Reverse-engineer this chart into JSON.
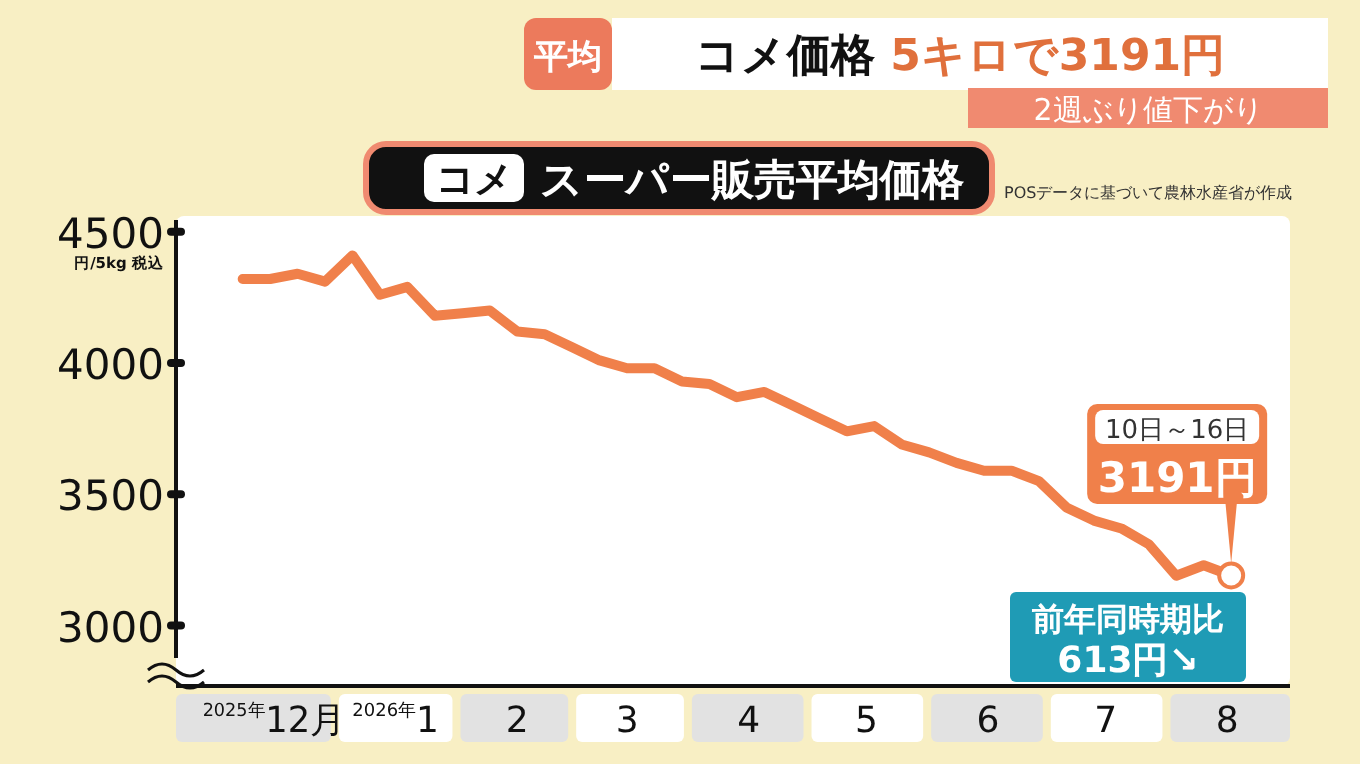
{
  "chart_data": {
    "type": "line",
    "title": "コメ スーパー販売平均価格",
    "ylabel": "円/5kg 税込",
    "annotations": [
      "平均",
      "コメ価格 5キロで3191円",
      "2週ぶり値下がり",
      "POSデータに基づいて農林水産省が作成",
      {
        "text": "10日～16日 3191円",
        "x": "2026-08-16",
        "y": 3191
      },
      "前年同時期比 613円↘"
    ],
    "x": [
      "2025-12-07",
      "2025-12-14",
      "2025-12-21",
      "2025-12-28",
      "2026-01-04",
      "2026-01-11",
      "2026-01-18",
      "2026-01-25",
      "2026-02-01",
      "2026-02-08",
      "2026-02-15",
      "2026-02-22",
      "2026-03-01",
      "2026-03-08",
      "2026-03-15",
      "2026-03-22",
      "2026-03-29",
      "2026-04-05",
      "2026-04-12",
      "2026-04-19",
      "2026-04-26",
      "2026-05-03",
      "2026-05-10",
      "2026-05-17",
      "2026-05-24",
      "2026-05-31",
      "2026-06-07",
      "2026-06-14",
      "2026-06-21",
      "2026-06-28",
      "2026-07-05",
      "2026-07-12",
      "2026-07-19",
      "2026-07-26",
      "2026-08-02",
      "2026-08-09",
      "2026-08-16"
    ],
    "series": [
      {
        "color": "#f0804a",
        "values": [
          4320,
          4320,
          4340,
          4310,
          4410,
          4260,
          4290,
          4180,
          4190,
          4200,
          4120,
          4110,
          4060,
          4010,
          3980,
          3980,
          3930,
          3920,
          3870,
          3890,
          3840,
          3790,
          3740,
          3760,
          3690,
          3660,
          3620,
          3590,
          3590,
          3550,
          3450,
          3400,
          3370,
          3310,
          3190,
          3230,
          3191
        ]
      }
    ],
    "xlim": [
      "2025-11-20",
      "2026-08-31"
    ],
    "xticks": [
      {
        "value": "2025-12-15",
        "label": "$^{2025年}$12月"
      },
      {
        "value": "2026-01-15",
        "label": "$^{2026年}$1"
      },
      {
        "value": "2026-02-15",
        "label": "2"
      },
      {
        "value": "2026-03-15",
        "label": "3"
      },
      {
        "value": "2026-04-15",
        "label": "4"
      },
      {
        "value": "2026-05-15",
        "label": "5"
      },
      {
        "value": "2026-06-15",
        "label": "6"
      },
      {
        "value": "2026-07-15",
        "label": "7"
      },
      {
        "value": "2026-08-15",
        "label": "8"
      }
    ],
    "ylim": [
      2770,
      4560
    ],
    "yticks": [
      3000,
      3500,
      4000,
      4500
    ],
    "grid": false,
    "marker": "none",
    "line_style": "solid"
  }
}
